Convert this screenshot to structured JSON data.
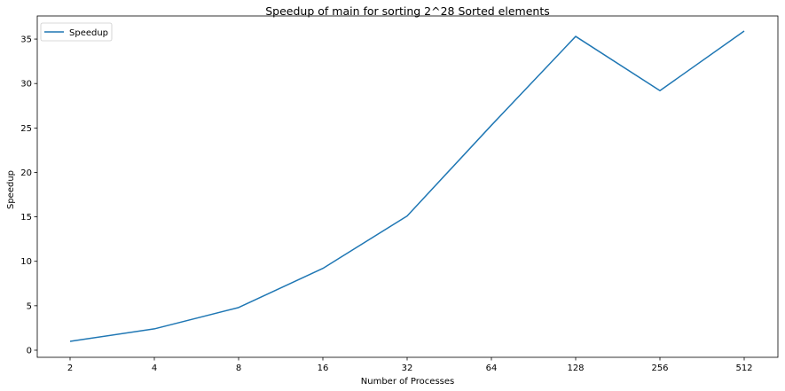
{
  "chart_data": {
    "type": "line",
    "title": "Speedup of main for sorting 2^28 Sorted elements",
    "xlabel": "Number of Processes",
    "ylabel": "Speedup",
    "categories": [
      "2",
      "4",
      "8",
      "16",
      "32",
      "64",
      "128",
      "256",
      "512"
    ],
    "series": [
      {
        "name": "Speedup",
        "color": "#1f77b4",
        "values": [
          1.0,
          2.4,
          4.8,
          9.2,
          15.1,
          25.3,
          35.3,
          29.2,
          35.9
        ]
      }
    ],
    "ylim": [
      -0.8,
      37.6
    ],
    "yticks": [
      0,
      5,
      10,
      15,
      20,
      25,
      30,
      35
    ],
    "grid": false,
    "legend": "top-left"
  }
}
